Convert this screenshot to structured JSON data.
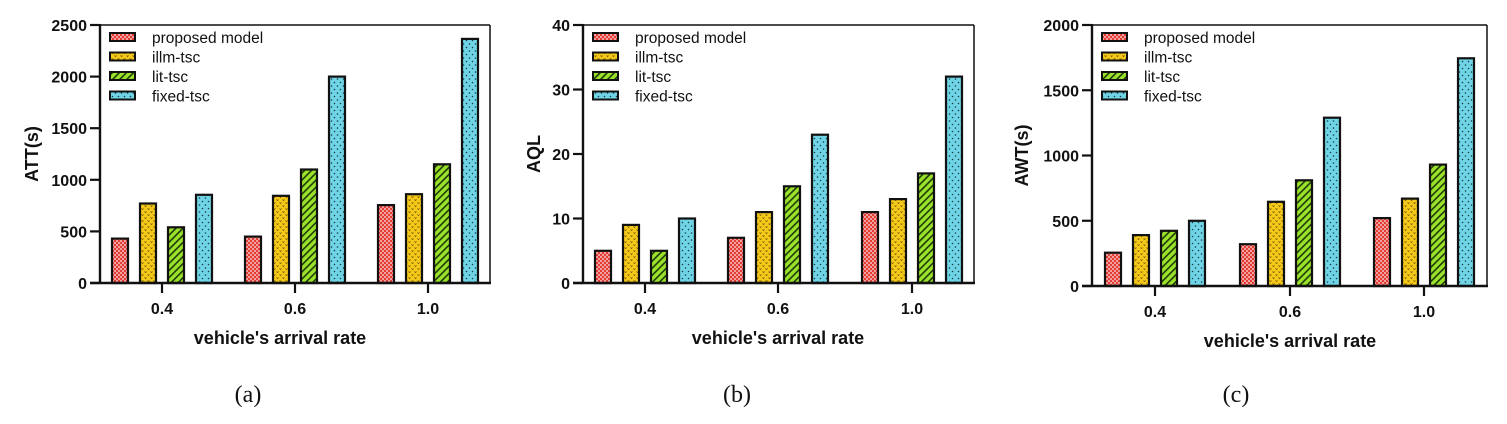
{
  "colors": {
    "proposed model": "#e8443a",
    "illm-tsc": "#f5c91a",
    "lit-tsc": "#9be22a",
    "fixed-tsc": "#6fd5e6"
  },
  "chart_data": [
    {
      "type": "bar",
      "caption": "(a)",
      "xlabel": "vehicle's arrival rate",
      "ylabel": "ATT(s)",
      "ylim": [
        0,
        2500
      ],
      "yticks": [
        0,
        500,
        1000,
        1500,
        2000,
        2500
      ],
      "categories": [
        "0.4",
        "0.6",
        "1.0"
      ],
      "legend_position": "top-left",
      "series": [
        {
          "name": "proposed model",
          "values": [
            430,
            450,
            755
          ]
        },
        {
          "name": "illm-tsc",
          "values": [
            770,
            845,
            860
          ]
        },
        {
          "name": "lit-tsc",
          "values": [
            540,
            1100,
            1150
          ]
        },
        {
          "name": "fixed-tsc",
          "values": [
            855,
            2000,
            2365
          ]
        }
      ]
    },
    {
      "type": "bar",
      "caption": "(b)",
      "xlabel": "vehicle's arrival rate",
      "ylabel": "AQL",
      "ylim": [
        0,
        40
      ],
      "yticks": [
        0,
        10,
        20,
        30,
        40
      ],
      "categories": [
        "0.4",
        "0.6",
        "1.0"
      ],
      "legend_position": "top-left",
      "series": [
        {
          "name": "proposed model",
          "values": [
            5,
            7,
            11
          ]
        },
        {
          "name": "illm-tsc",
          "values": [
            9,
            11,
            13
          ]
        },
        {
          "name": "lit-tsc",
          "values": [
            5,
            15,
            17
          ]
        },
        {
          "name": "fixed-tsc",
          "values": [
            10,
            23,
            32
          ]
        }
      ]
    },
    {
      "type": "bar",
      "caption": "(c)",
      "xlabel": "vehicle's arrival rate",
      "ylabel": "AWT(s)",
      "ylim": [
        0,
        2000
      ],
      "yticks": [
        0,
        500,
        1000,
        1500,
        2000
      ],
      "categories": [
        "0.4",
        "0.6",
        "1.0"
      ],
      "legend_position": "top-left",
      "series": [
        {
          "name": "proposed model",
          "values": [
            255,
            320,
            520
          ]
        },
        {
          "name": "illm-tsc",
          "values": [
            390,
            645,
            670
          ]
        },
        {
          "name": "lit-tsc",
          "values": [
            423,
            810,
            930
          ]
        },
        {
          "name": "fixed-tsc",
          "values": [
            500,
            1290,
            1745
          ]
        }
      ]
    }
  ]
}
